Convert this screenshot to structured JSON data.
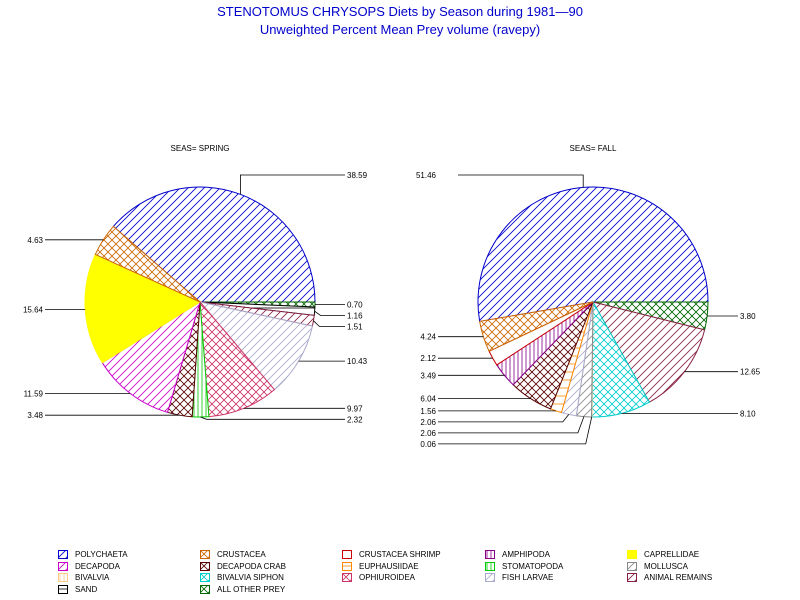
{
  "title": "STENOTOMUS CHRYSOPS Diets by Season during 1981—90",
  "subtitle": "Unweighted Percent Mean Prey volume (ravepy)",
  "categories": [
    {
      "name": "POLYCHAETA",
      "color": "#0000cc",
      "pattern": "diag-right"
    },
    {
      "name": "CRUSTACEA",
      "color": "#cc6600",
      "pattern": "cross"
    },
    {
      "name": "CRUSTACEA SHRIMP",
      "color": "#cc0000",
      "pattern": "empty"
    },
    {
      "name": "AMPHIPODA",
      "color": "#880088",
      "pattern": "vertical"
    },
    {
      "name": "CAPRELLIDAE",
      "color": "#ffff00",
      "pattern": "solid"
    },
    {
      "name": "DECAPODA",
      "color": "#cc00cc",
      "pattern": "diag-right"
    },
    {
      "name": "DECAPODA CRAB",
      "color": "#550000",
      "pattern": "cross"
    },
    {
      "name": "EUPHAUSIIDAE",
      "color": "#ff8800",
      "pattern": "horizontal"
    },
    {
      "name": "STOMATOPODA",
      "color": "#00cc00",
      "pattern": "vertical"
    },
    {
      "name": "MOLLUSCA",
      "color": "#888888",
      "pattern": "diag-right"
    },
    {
      "name": "BIVALVIA",
      "color": "#ffcc88",
      "pattern": "vertical"
    },
    {
      "name": "BIVALVIA SIPHON",
      "color": "#00cccc",
      "pattern": "cross"
    },
    {
      "name": "OPHIUROIDEA",
      "color": "#cc3366",
      "pattern": "cross"
    },
    {
      "name": "FISH LARVAE",
      "color": "#aaaacc",
      "pattern": "diag-right"
    },
    {
      "name": "ANIMAL REMAINS",
      "color": "#882244",
      "pattern": "diag-right"
    },
    {
      "name": "SAND",
      "color": "#000000",
      "pattern": "horizontal"
    },
    {
      "name": "ALL OTHER PREY",
      "color": "#006600",
      "pattern": "cross"
    }
  ],
  "chart_data": [
    {
      "type": "pie",
      "title": "SEAS= SPRING",
      "slices": [
        {
          "category": "POLYCHAETA",
          "value": 38.59,
          "label": "38.59"
        },
        {
          "category": "ALL OTHER PREY",
          "value": 0.7,
          "label": "0.70"
        },
        {
          "category": "SAND",
          "value": 1.16,
          "label": "1.16"
        },
        {
          "category": "ANIMAL REMAINS",
          "value": 1.51,
          "label": "1.51"
        },
        {
          "category": "FISH LARVAE",
          "value": 10.43,
          "label": "10.43"
        },
        {
          "category": "OPHIUROIDEA",
          "value": 9.97,
          "label": "9.97"
        },
        {
          "category": "STOMATOPODA",
          "value": 2.32,
          "label": "2.32"
        },
        {
          "category": "DECAPODA CRAB",
          "value": 3.48,
          "label": "3.48"
        },
        {
          "category": "DECAPODA",
          "value": 11.59,
          "label": "11.59"
        },
        {
          "category": "CAPRELLIDAE",
          "value": 15.64,
          "label": "15.64"
        },
        {
          "category": "CRUSTACEA",
          "value": 4.63,
          "label": "4.63"
        }
      ]
    },
    {
      "type": "pie",
      "title": "SEAS= FALL",
      "slices": [
        {
          "category": "POLYCHAETA",
          "value": 51.46,
          "label": "51.46"
        },
        {
          "category": "ALL OTHER PREY",
          "value": 3.8,
          "label": "3.80"
        },
        {
          "category": "ANIMAL REMAINS",
          "value": 12.65,
          "label": "12.65"
        },
        {
          "category": "BIVALVIA SIPHON",
          "value": 8.1,
          "label": "8.10"
        },
        {
          "category": "BIVALVIA",
          "value": 0.06,
          "label": "0.06"
        },
        {
          "category": "MOLLUSCA",
          "value": 2.06,
          "label": "2.06"
        },
        {
          "category": "FISH LARVAE",
          "value": 2.06,
          "label": "2.06"
        },
        {
          "category": "EUPHAUSIIDAE",
          "value": 1.56,
          "label": "1.56"
        },
        {
          "category": "DECAPODA CRAB",
          "value": 6.04,
          "label": "6.04"
        },
        {
          "category": "AMPHIPODA",
          "value": 3.49,
          "label": "3.49"
        },
        {
          "category": "CRUSTACEA SHRIMP",
          "value": 2.12,
          "label": "2.12"
        },
        {
          "category": "CRUSTACEA",
          "value": 4.24,
          "label": "4.24"
        }
      ]
    }
  ]
}
